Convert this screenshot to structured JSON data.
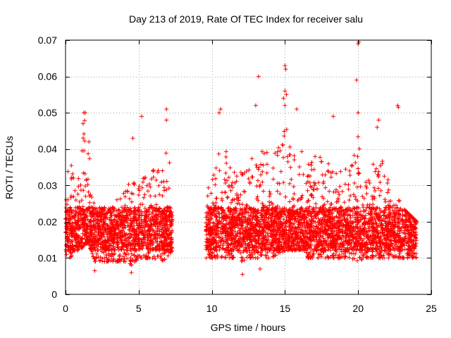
{
  "chart_data": {
    "type": "scatter",
    "title": "Day 213 of 2019, Rate Of TEC Index for receiver salu",
    "xlabel": "GPS time / hours",
    "ylabel": "ROTI / TECUs",
    "xlim": [
      0,
      25
    ],
    "ylim": [
      0,
      0.07
    ],
    "grid": true,
    "x_ticks": [
      0,
      5,
      10,
      15,
      20,
      25
    ],
    "x_tick_labels": [
      "0",
      "5",
      "10",
      "15",
      "20",
      "25"
    ],
    "y_ticks": [
      0,
      0.01,
      0.02,
      0.03,
      0.04,
      0.05,
      0.06,
      0.07
    ],
    "y_tick_labels": [
      "0",
      "0.01",
      "0.02",
      "0.03",
      "0.04",
      "0.05",
      "0.06",
      "0.07"
    ],
    "marker": "+",
    "color": "#ff0000",
    "series": [
      {
        "name": "ROTI",
        "segments": [
          {
            "t0": 0.0,
            "t1": 7.3,
            "n": 1700
          },
          {
            "t0": 9.6,
            "t1": 24.0,
            "n": 3400
          }
        ],
        "envelope": [
          [
            0.0,
            0.01,
            0.03
          ],
          [
            0.3,
            0.01,
            0.038
          ],
          [
            0.7,
            0.012,
            0.03
          ],
          [
            1.0,
            0.012,
            0.034
          ],
          [
            1.3,
            0.014,
            0.048
          ],
          [
            1.6,
            0.014,
            0.04
          ],
          [
            2.0,
            0.009,
            0.024
          ],
          [
            3.0,
            0.009,
            0.024
          ],
          [
            4.0,
            0.009,
            0.028
          ],
          [
            4.5,
            0.008,
            0.035
          ],
          [
            5.0,
            0.01,
            0.03
          ],
          [
            5.5,
            0.01,
            0.034
          ],
          [
            6.0,
            0.01,
            0.036
          ],
          [
            6.5,
            0.009,
            0.037
          ],
          [
            7.0,
            0.01,
            0.04
          ],
          [
            7.3,
            0.012,
            0.032
          ],
          [
            9.6,
            0.01,
            0.028
          ],
          [
            10.0,
            0.01,
            0.032
          ],
          [
            10.5,
            0.01,
            0.042
          ],
          [
            11.0,
            0.01,
            0.04
          ],
          [
            11.5,
            0.01,
            0.034
          ],
          [
            12.0,
            0.009,
            0.035
          ],
          [
            12.5,
            0.01,
            0.036
          ],
          [
            13.0,
            0.01,
            0.04
          ],
          [
            13.5,
            0.01,
            0.04
          ],
          [
            14.0,
            0.01,
            0.04
          ],
          [
            14.5,
            0.011,
            0.042
          ],
          [
            15.0,
            0.012,
            0.048
          ],
          [
            15.5,
            0.012,
            0.038
          ],
          [
            16.0,
            0.012,
            0.044
          ],
          [
            16.5,
            0.01,
            0.036
          ],
          [
            17.0,
            0.01,
            0.04
          ],
          [
            17.5,
            0.01,
            0.038
          ],
          [
            18.0,
            0.01,
            0.037
          ],
          [
            18.5,
            0.01,
            0.036
          ],
          [
            19.0,
            0.01,
            0.034
          ],
          [
            19.5,
            0.01,
            0.038
          ],
          [
            20.0,
            0.009,
            0.045
          ],
          [
            20.5,
            0.01,
            0.036
          ],
          [
            21.0,
            0.01,
            0.036
          ],
          [
            21.5,
            0.01,
            0.04
          ],
          [
            22.0,
            0.01,
            0.032
          ],
          [
            22.5,
            0.01,
            0.03
          ],
          [
            23.0,
            0.01,
            0.024
          ],
          [
            24.0,
            0.01,
            0.02
          ]
        ],
        "outliers": [
          [
            1.25,
            0.05
          ],
          [
            1.35,
            0.05
          ],
          [
            1.2,
            0.047
          ],
          [
            1.6,
            0.042
          ],
          [
            5.2,
            0.049
          ],
          [
            6.9,
            0.051
          ],
          [
            6.9,
            0.048
          ],
          [
            4.6,
            0.043
          ],
          [
            10.6,
            0.051
          ],
          [
            10.5,
            0.05
          ],
          [
            13.0,
            0.052
          ],
          [
            13.2,
            0.06
          ],
          [
            15.0,
            0.063
          ],
          [
            15.05,
            0.062
          ],
          [
            15.0,
            0.056
          ],
          [
            14.9,
            0.054
          ],
          [
            15.1,
            0.055
          ],
          [
            15.0,
            0.052
          ],
          [
            15.8,
            0.051
          ],
          [
            18.3,
            0.049
          ],
          [
            20.0,
            0.069
          ],
          [
            20.05,
            0.0695
          ],
          [
            19.9,
            0.059
          ],
          [
            20.0,
            0.05
          ],
          [
            21.4,
            0.048
          ],
          [
            21.3,
            0.046
          ],
          [
            22.7,
            0.052
          ],
          [
            22.75,
            0.0515
          ],
          [
            12.1,
            0.0055
          ],
          [
            4.5,
            0.006
          ],
          [
            2.0,
            0.0065
          ],
          [
            13.3,
            0.007
          ]
        ]
      }
    ]
  }
}
